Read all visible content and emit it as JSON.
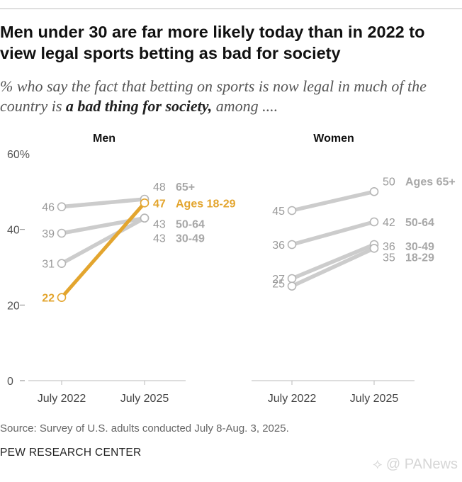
{
  "title": "Men under 30 are far more likely today than in 2022 to view legal sports betting as bad for society",
  "subtitle": {
    "part1": "% who say the fact that betting on sports is now legal in much of the country is ",
    "emphasis": "a bad thing for society,",
    "part2": " among ...."
  },
  "source": "Source: Survey of U.S. adults conducted July 8-Aug. 3, 2025.",
  "brand": "PEW RESEARCH CENTER",
  "watermark": "⟡ @ PANews",
  "colors": {
    "highlight": "#e3a52e",
    "gray_line": "#cccccc",
    "gray_text": "#9a9a9a",
    "gray_label": "#a8a8a8"
  },
  "chart_data": [
    {
      "type": "line",
      "title": "Men",
      "categories": [
        "July 2022",
        "July 2025"
      ],
      "yticks": [
        "60%",
        "40",
        "20",
        "0"
      ],
      "ylim": [
        0,
        60
      ],
      "series": [
        {
          "name": "65+",
          "values": [
            46,
            48
          ],
          "highlight": false
        },
        {
          "name": "Ages 18-29",
          "values": [
            22,
            47
          ],
          "highlight": true
        },
        {
          "name": "50-64",
          "values": [
            39,
            43
          ],
          "highlight": false
        },
        {
          "name": "30-49",
          "values": [
            31,
            43
          ],
          "highlight": false
        }
      ]
    },
    {
      "type": "line",
      "title": "Women",
      "categories": [
        "July 2022",
        "July 2025"
      ],
      "ylim": [
        0,
        60
      ],
      "series": [
        {
          "name": "Ages 65+",
          "values": [
            45,
            50
          ],
          "highlight": false
        },
        {
          "name": "50-64",
          "values": [
            36,
            42
          ],
          "highlight": false
        },
        {
          "name": "30-49",
          "values": [
            27,
            36
          ],
          "highlight": false
        },
        {
          "name": "18-29",
          "values": [
            25,
            35
          ],
          "highlight": false
        }
      ]
    }
  ]
}
